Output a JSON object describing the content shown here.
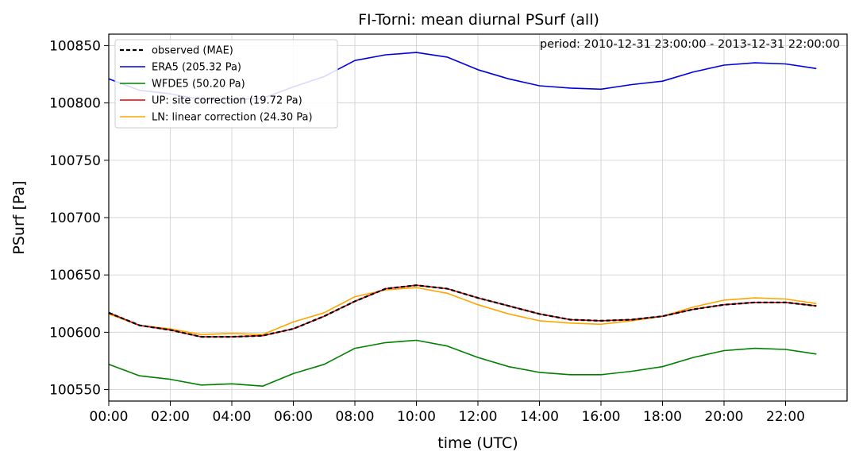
{
  "chart_data": {
    "type": "line",
    "title": "FI-Torni: mean diurnal PSurf (all)",
    "annotation": "period: 2010-12-31 23:00:00 - 2013-12-31 22:00:00",
    "xlabel": "time (UTC)",
    "ylabel": "PSurf [Pa]",
    "x": [
      0,
      1,
      2,
      3,
      4,
      5,
      6,
      7,
      8,
      9,
      10,
      11,
      12,
      13,
      14,
      15,
      16,
      17,
      18,
      19,
      20,
      21,
      22,
      23
    ],
    "xlim": [
      0,
      24
    ],
    "ylim": [
      100540,
      100860
    ],
    "xticks": [
      {
        "value": 0,
        "label": "00:00"
      },
      {
        "value": 2,
        "label": "02:00"
      },
      {
        "value": 4,
        "label": "04:00"
      },
      {
        "value": 6,
        "label": "06:00"
      },
      {
        "value": 8,
        "label": "08:00"
      },
      {
        "value": 10,
        "label": "10:00"
      },
      {
        "value": 12,
        "label": "12:00"
      },
      {
        "value": 14,
        "label": "14:00"
      },
      {
        "value": 16,
        "label": "16:00"
      },
      {
        "value": 18,
        "label": "18:00"
      },
      {
        "value": 20,
        "label": "20:00"
      },
      {
        "value": 22,
        "label": "22:00"
      }
    ],
    "yticks": [
      {
        "value": 100550,
        "label": "100550"
      },
      {
        "value": 100600,
        "label": "100600"
      },
      {
        "value": 100650,
        "label": "100650"
      },
      {
        "value": 100700,
        "label": "100700"
      },
      {
        "value": 100750,
        "label": "100750"
      },
      {
        "value": 100800,
        "label": "100800"
      },
      {
        "value": 100850,
        "label": "100850"
      }
    ],
    "grid": true,
    "legend_position": "top-left",
    "series": [
      {
        "name": "observed (MAE)",
        "color": "#000000",
        "dashed": true,
        "values": [
          100617,
          100606,
          100602,
          100596,
          100596,
          100597,
          100603,
          100614,
          100627,
          100638,
          100641,
          100638,
          100630,
          100623,
          100616,
          100611,
          100610,
          100611,
          100614,
          100620,
          100624,
          100626,
          100626,
          100623
        ]
      },
      {
        "name": "ERA5 (205.32 Pa)",
        "color": "#0000dd",
        "dashed": false,
        "values": [
          100821,
          100811,
          100808,
          100803,
          100803,
          100804,
          100814,
          100823,
          100837,
          100842,
          100844,
          100840,
          100829,
          100821,
          100815,
          100813,
          100812,
          100816,
          100819,
          100827,
          100833,
          100835,
          100834,
          100830
        ]
      },
      {
        "name": "WFDE5 (50.20 Pa)",
        "color": "#008000",
        "dashed": false,
        "values": [
          100572,
          100562,
          100559,
          100554,
          100555,
          100553,
          100564,
          100572,
          100586,
          100591,
          100593,
          100588,
          100578,
          100570,
          100565,
          100563,
          100563,
          100566,
          100570,
          100578,
          100584,
          100586,
          100585,
          100581
        ]
      },
      {
        "name": "UP: site correction (19.72 Pa)",
        "color": "#e00000",
        "dashed": false,
        "values": [
          100617,
          100606,
          100602,
          100596,
          100596,
          100597,
          100603,
          100614,
          100627,
          100638,
          100641,
          100638,
          100630,
          100623,
          100616,
          100611,
          100610,
          100611,
          100614,
          100620,
          100624,
          100626,
          100626,
          100623
        ]
      },
      {
        "name": "LN: linear correction (24.30 Pa)",
        "color": "#ffa500",
        "dashed": false,
        "values": [
          100616,
          100606,
          100603,
          100598,
          100599,
          100598,
          100609,
          100617,
          100631,
          100637,
          100639,
          100634,
          100624,
          100616,
          100610,
          100608,
          100607,
          100610,
          100614,
          100622,
          100628,
          100630,
          100629,
          100625
        ]
      }
    ]
  }
}
